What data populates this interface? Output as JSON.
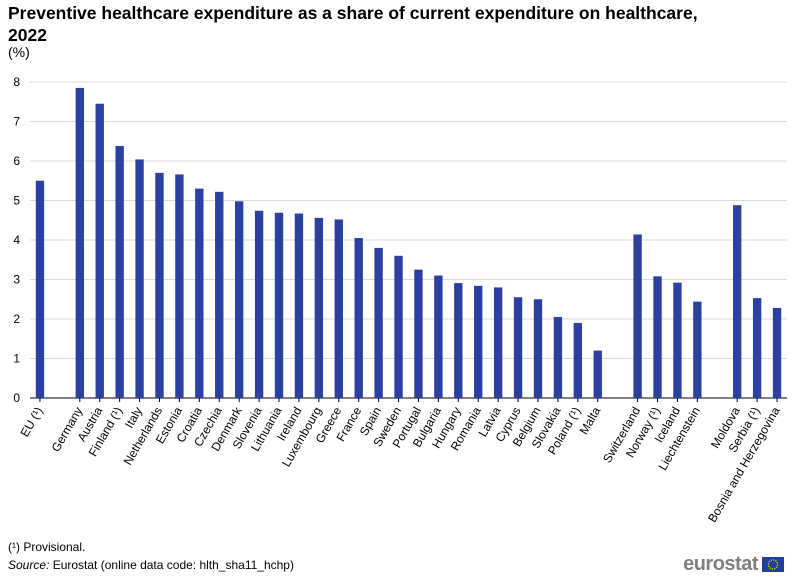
{
  "chart_data": {
    "type": "bar",
    "title": "Preventive healthcare expenditure as a share of current expenditure on healthcare, 2022",
    "ylabel": "(%)",
    "xlabel": "",
    "ylim": [
      0,
      8
    ],
    "yticks": [
      0,
      1,
      2,
      3,
      4,
      5,
      6,
      7,
      8
    ],
    "grid": true,
    "color": "#2b40a0",
    "groups": [
      {
        "categories": [
          "EU (¹)"
        ],
        "values": [
          5.5
        ]
      },
      {
        "categories": [
          "Germany",
          "Austria",
          "Finland (¹)",
          "Italy",
          "Netherlands",
          "Estonia",
          "Croatia",
          "Czechia",
          "Denmark",
          "Slovenia",
          "Lithuania",
          "Ireland",
          "Luxembourg",
          "Greece",
          "France",
          "Spain",
          "Sweden",
          "Portugal",
          "Bulgaria",
          "Hungary",
          "Romania",
          "Latvia",
          "Cyprus",
          "Belgium",
          "Slovakia",
          "Poland (¹)",
          "Malta"
        ],
        "values": [
          7.85,
          7.45,
          6.38,
          6.04,
          5.7,
          5.66,
          5.3,
          5.22,
          4.98,
          4.74,
          4.69,
          4.67,
          4.56,
          4.52,
          4.05,
          3.8,
          3.6,
          3.25,
          3.1,
          2.91,
          2.84,
          2.8,
          2.55,
          2.5,
          2.05,
          1.9,
          1.2
        ]
      },
      {
        "categories": [
          "Switzerland",
          "Norway (¹)",
          "Iceland",
          "Liechtenstein"
        ],
        "values": [
          4.14,
          3.08,
          2.92,
          2.44
        ]
      },
      {
        "categories": [
          "Moldova",
          "Serbia (¹)",
          "Bosnia and Herzegovina"
        ],
        "values": [
          4.88,
          2.53,
          2.28
        ]
      }
    ]
  },
  "footnote": "(¹) Provisional.",
  "source_label": "Source:",
  "source_text": "Eurostat (online data code: hlth_sha11_hchp)",
  "logo_text": "eurostat"
}
